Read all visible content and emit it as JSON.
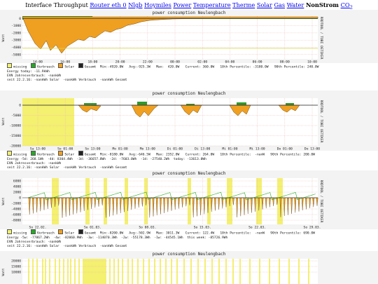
{
  "nav": {
    "lead": "Interface Throughput",
    "links": [
      "Router eth 0",
      "Nlgb",
      "Hoymiles",
      "Power",
      "Temperature",
      "Therme",
      "Solar",
      "Gas",
      "Water"
    ],
    "current": "NonStrom",
    "co2": "CO",
    "co2_sub": "2"
  },
  "colors": {
    "missing": "#f0f070",
    "verbrauch": "#22aa22",
    "solar": "#f0a020",
    "gesamt": "#222222",
    "grid": "#e8b8b8",
    "threshold": "#d8d840",
    "band": "#f4f070"
  },
  "panels": [
    {
      "title": "power consumption Neulengbach",
      "ylabel": "Watt",
      "yticks": [
        "0",
        "-1000",
        "-2000",
        "-3000",
        "-4000",
        "-5000"
      ],
      "xticks": [
        "14:00",
        "16:00",
        "18:00",
        "20:00",
        "22:00",
        "00:00",
        "02:00",
        "04:00",
        "06:00",
        "08:00",
        "10:00"
      ],
      "side": "RRDTOOL / TOBI OETIKER",
      "legend": [
        "missing",
        "Verbrauch",
        "Solar",
        "Gesamt"
      ],
      "stats": "Min:-4920.0W   Avg:-925.3W   Max:  420.0W   Current: 360.0W   10th Percentile: -3180.0W   90th Percentile: 240.0W",
      "extra": [
        "Energy today: -11.9kWh",
        "EVN Jahresverbrauch: -nankWh",
        "seit 22.2.16: -nankWh Solar  -nankWh Verbrauch  -nankWh Gesamt"
      ]
    },
    {
      "title": "power consumption Neulengbach",
      "ylabel": "Watt",
      "yticks": [
        "0",
        "-5000",
        "-10000",
        "-15000",
        "-20000"
      ],
      "xticks": [
        "Sa 13:00",
        "So 01:00",
        "So 13:00",
        "Mo 01:00",
        "Mo 13:00",
        "Di 01:00",
        "Di 13:00",
        "Mi 01:00",
        "Mi 13:00",
        "Do 01:00",
        "Do 13:00"
      ],
      "side": "RRDTOOL / TOBI OETIKER",
      "legend": [
        "missing",
        "Verbrauch",
        "Solar",
        "Gesamt"
      ],
      "stats": "Min:-8180.0W   Avg:-646.5W   Max: 2352.0W   Current: 264.0W   10th Percentile:  -nanW   90th Percentile: 200.0W",
      "extra": [
        "Energy -5d: 268.1Wh  -4d: 8304.4Wh  -3d: -36657.8Wh  -2d: -7603.0Wh  -1d: -27540.2Wh  today: -13613.0Wh",
        "EVN Jahresverbrauch: -nankWh",
        "seit 22.2.16: -nankWh Solar  -nankWh Verbrauch  -nankWh Gesamt"
      ]
    },
    {
      "title": "power consumption Neulengbach",
      "ylabel": "Watt",
      "yticks": [
        "6000",
        "4000",
        "2000",
        "0",
        "-2000",
        "-4000",
        "-6000",
        "-8000"
      ],
      "xticks": [
        "So 22.02.",
        "So 01.03.",
        "So 08.03.",
        "So 15.03.",
        "So 22.03.",
        "So 29.03."
      ],
      "side": "RRDTOOL / TOBI OETIKER",
      "legend": [
        "missing",
        "Verbrauch",
        "Solar",
        "Gesamt"
      ],
      "stats": "Min:-8200.0W   Avg:-502.9W   Max: 3011.3W   Current: 122.4W   10th Percentile:  -nanW   90th Percentile: 690.0W",
      "extra": [
        "Energy -5w: -77867.2Wh  -4w: -82060.9Wh  -3w: -114070.3Wh  -2w: -55178.3Wh  -1w: -44545.1Wh  this week: -85726.9Wh",
        "EVN Jahresverbrauch: -nankWh",
        "seit 22.2.16: -nankWh Solar  -nankWh Verbrauch  -nankWh Gesamt"
      ]
    },
    {
      "title": "power consumption Neulengbach",
      "ylabel": "Watt",
      "yticks": [
        "20000",
        "15000",
        "10000"
      ],
      "xticks": [],
      "side": "",
      "legend": [],
      "stats": "",
      "extra": []
    }
  ]
}
